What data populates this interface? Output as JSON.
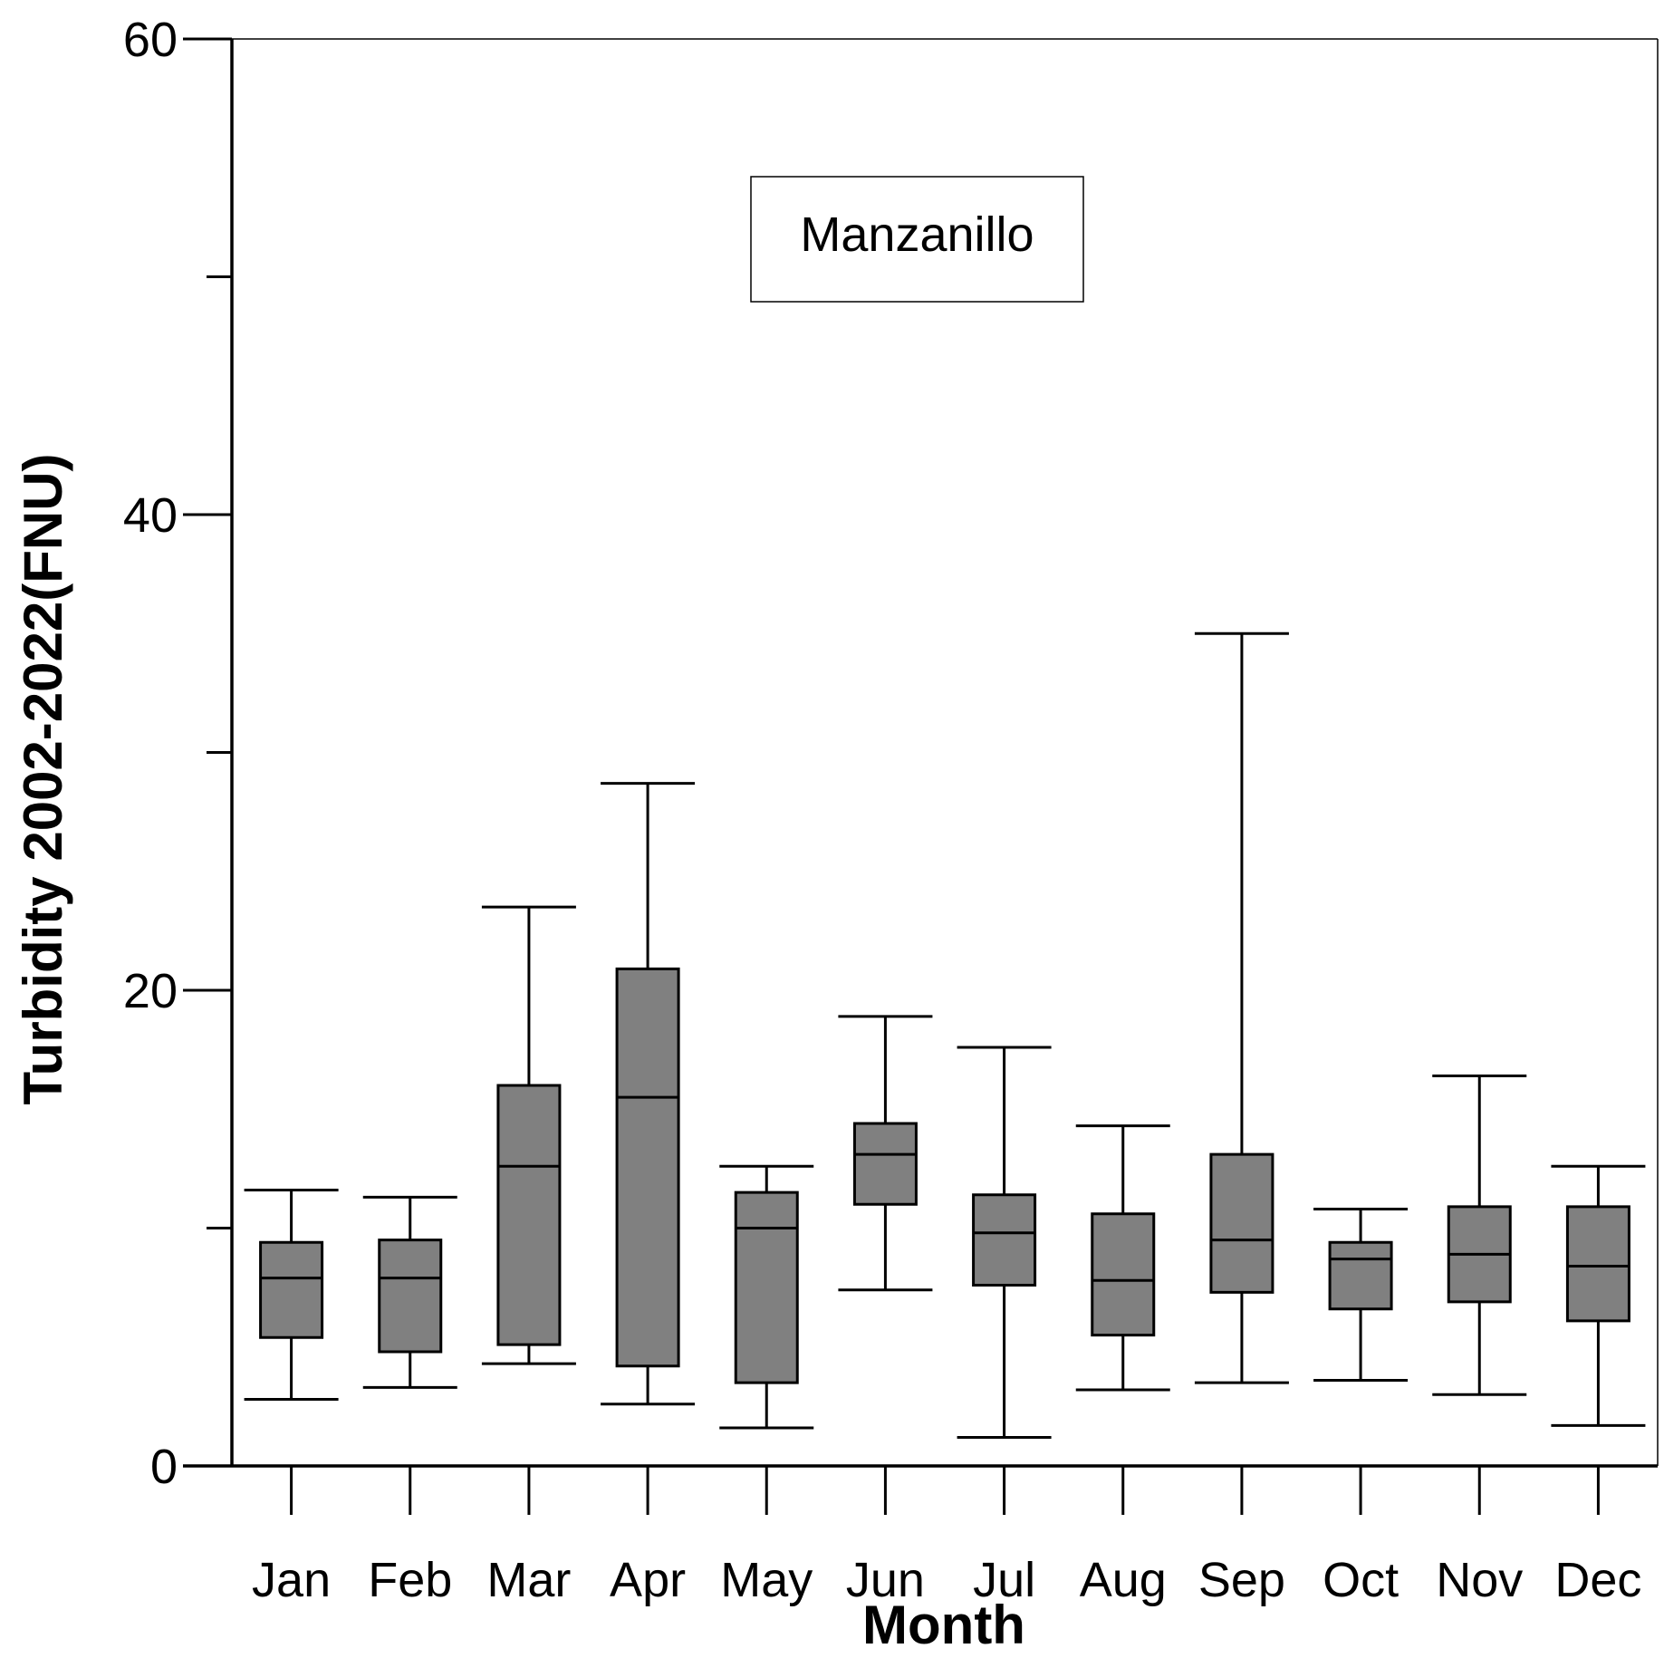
{
  "chart_data": {
    "type": "box",
    "annotation": "Manzanillo",
    "xlabel": "Month",
    "ylabel": "Turbidity 2002-2022(FNU)",
    "ylim": [
      0,
      60
    ],
    "yticks": [
      0,
      20,
      40,
      60
    ],
    "y_minor_ticks": [
      10,
      30,
      50
    ],
    "categories": [
      "Jan",
      "Feb",
      "Mar",
      "Apr",
      "May",
      "Jun",
      "Jul",
      "Aug",
      "Sep",
      "Oct",
      "Nov",
      "Dec"
    ],
    "boxes": [
      {
        "month": "Jan",
        "whisker_low": 2.8,
        "q1": 5.4,
        "median": 7.9,
        "q3": 9.4,
        "whisker_high": 11.6
      },
      {
        "month": "Feb",
        "whisker_low": 3.3,
        "q1": 4.8,
        "median": 7.9,
        "q3": 9.5,
        "whisker_high": 11.3
      },
      {
        "month": "Mar",
        "whisker_low": 4.3,
        "q1": 5.1,
        "median": 12.6,
        "q3": 16.0,
        "whisker_high": 23.5
      },
      {
        "month": "Apr",
        "whisker_low": 2.6,
        "q1": 4.2,
        "median": 15.5,
        "q3": 20.9,
        "whisker_high": 28.7
      },
      {
        "month": "May",
        "whisker_low": 1.6,
        "q1": 3.5,
        "median": 10.0,
        "q3": 11.5,
        "whisker_high": 12.6
      },
      {
        "month": "Jun",
        "whisker_low": 7.4,
        "q1": 11.0,
        "median": 13.1,
        "q3": 14.4,
        "whisker_high": 18.9
      },
      {
        "month": "Jul",
        "whisker_low": 1.2,
        "q1": 7.6,
        "median": 9.8,
        "q3": 11.4,
        "whisker_high": 17.6
      },
      {
        "month": "Aug",
        "whisker_low": 3.2,
        "q1": 5.5,
        "median": 7.8,
        "q3": 10.6,
        "whisker_high": 14.3
      },
      {
        "month": "Sep",
        "whisker_low": 3.5,
        "q1": 7.3,
        "median": 9.5,
        "q3": 13.1,
        "whisker_high": 35.0
      },
      {
        "month": "Oct",
        "whisker_low": 3.6,
        "q1": 6.6,
        "median": 8.7,
        "q3": 9.4,
        "whisker_high": 10.8
      },
      {
        "month": "Nov",
        "whisker_low": 3.0,
        "q1": 6.9,
        "median": 8.9,
        "q3": 10.9,
        "whisker_high": 16.4
      },
      {
        "month": "Dec",
        "whisker_low": 1.7,
        "q1": 6.1,
        "median": 8.4,
        "q3": 10.9,
        "whisker_high": 12.6
      }
    ],
    "colors": {
      "box_fill": "#808080",
      "line": "#000000",
      "background": "#ffffff"
    }
  }
}
